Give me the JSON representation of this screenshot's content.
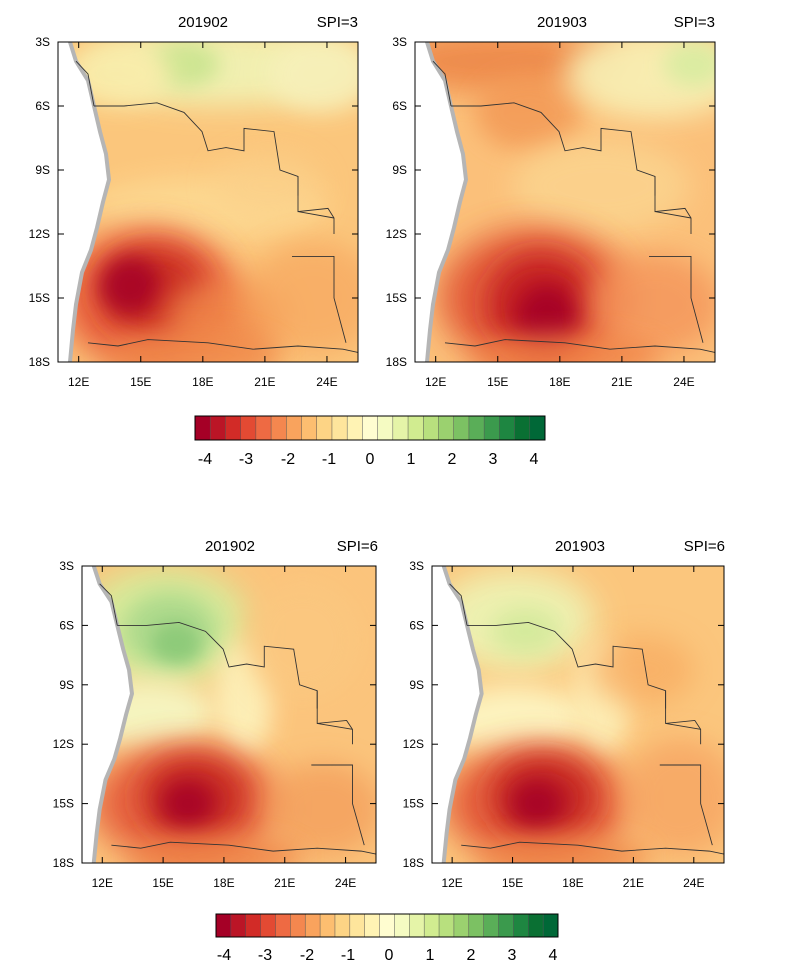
{
  "panels": [
    {
      "date": "201902",
      "index": "SPI=3",
      "variant": "spi3_feb"
    },
    {
      "date": "201903",
      "index": "SPI=3",
      "variant": "spi3_mar"
    },
    {
      "date": "201902",
      "index": "SPI=6",
      "variant": "spi6_feb"
    },
    {
      "date": "201903",
      "index": "SPI=6",
      "variant": "spi6_mar"
    }
  ],
  "axes": {
    "lat_labels": [
      "3S",
      "6S",
      "9S",
      "12S",
      "15S",
      "18S"
    ],
    "lon_labels": [
      "12E",
      "15E",
      "18E",
      "21E",
      "24E"
    ]
  },
  "colorbar": {
    "labels": [
      "-4",
      "-3",
      "-2",
      "-1",
      "0",
      "1",
      "2",
      "3",
      "4"
    ],
    "colors": [
      "#a50026",
      "#bb1526",
      "#d22b27",
      "#e34a33",
      "#ee6a43",
      "#f4874f",
      "#f9a35d",
      "#fdbe70",
      "#fdd485",
      "#fee59c",
      "#fff3b4",
      "#fffdd0",
      "#f5fbc2",
      "#e5f4a8",
      "#d1ec90",
      "#b8e07e",
      "#9bd16f",
      "#7cc163",
      "#5aae58",
      "#3b9a4d",
      "#1e8641",
      "#0a7033",
      "#006837"
    ]
  }
}
